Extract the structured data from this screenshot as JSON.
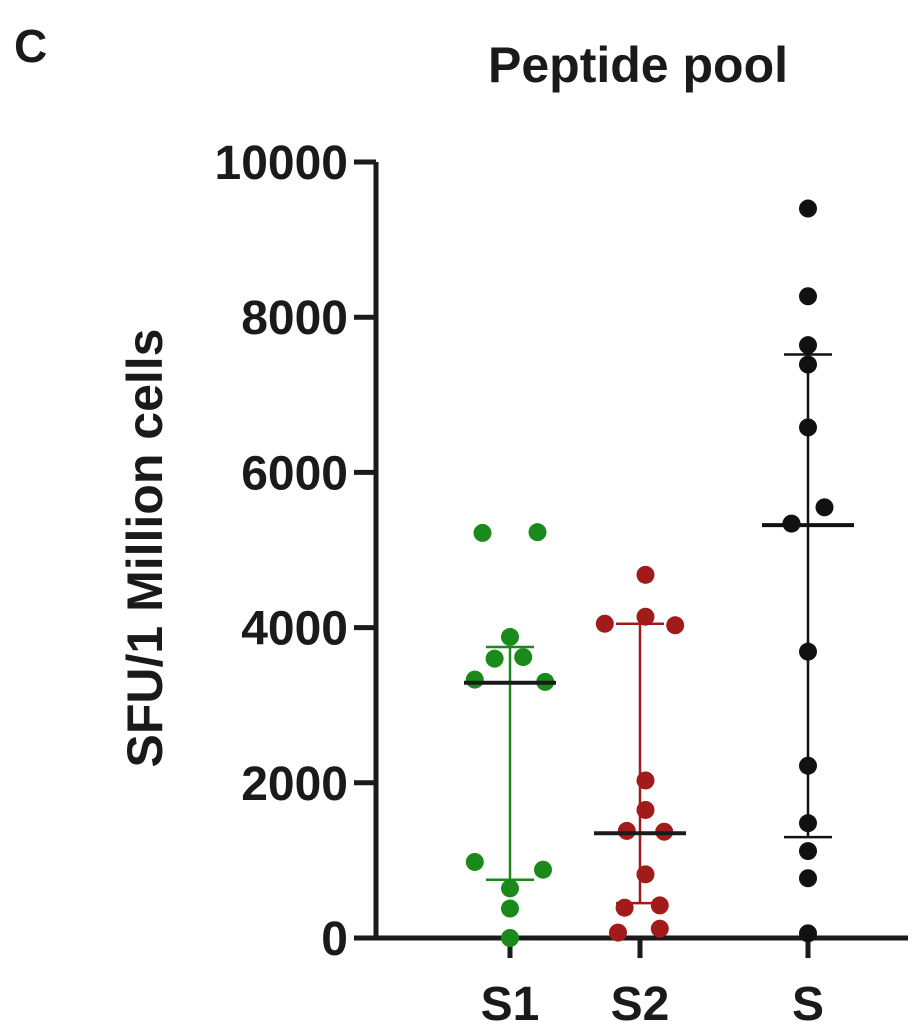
{
  "panel_label": "C",
  "chart_data": {
    "type": "scatter",
    "title": "Peptide pool",
    "xlabel": "",
    "ylabel": "SFU/1 Million cells",
    "ylim": [
      0,
      10000
    ],
    "yticks": [
      0,
      2000,
      4000,
      6000,
      8000,
      10000
    ],
    "categories": [
      "S1",
      "S2",
      "S"
    ],
    "grid": false,
    "series": [
      {
        "category": "S1",
        "color": "#1a8a1a",
        "points": [
          {
            "offset": -0.25,
            "y": 5220
          },
          {
            "offset": 0.25,
            "y": 5230
          },
          {
            "offset": 0.0,
            "y": 3880
          },
          {
            "offset": -0.14,
            "y": 3600
          },
          {
            "offset": 0.12,
            "y": 3620
          },
          {
            "offset": -0.32,
            "y": 3330
          },
          {
            "offset": 0.32,
            "y": 3300
          },
          {
            "offset": -0.32,
            "y": 980
          },
          {
            "offset": 0.3,
            "y": 880
          },
          {
            "offset": 0.0,
            "y": 640
          },
          {
            "offset": 0.0,
            "y": 380
          },
          {
            "offset": 0.0,
            "y": 0
          }
        ],
        "median": 3290,
        "q1": 750,
        "q3": 3750,
        "median_color": "#1a1a1a"
      },
      {
        "category": "S2",
        "color": "#a11b1b",
        "points": [
          {
            "offset": 0.05,
            "y": 4680
          },
          {
            "offset": 0.05,
            "y": 4140
          },
          {
            "offset": -0.32,
            "y": 4050
          },
          {
            "offset": 0.32,
            "y": 4030
          },
          {
            "offset": 0.05,
            "y": 2030
          },
          {
            "offset": 0.05,
            "y": 1650
          },
          {
            "offset": -0.12,
            "y": 1380
          },
          {
            "offset": 0.22,
            "y": 1370
          },
          {
            "offset": 0.05,
            "y": 820
          },
          {
            "offset": -0.14,
            "y": 390
          },
          {
            "offset": 0.18,
            "y": 420
          },
          {
            "offset": -0.2,
            "y": 70
          },
          {
            "offset": 0.18,
            "y": 120
          }
        ],
        "median": 1350,
        "q1": 450,
        "q3": 4050,
        "median_color": "#1a1a1a"
      },
      {
        "category": "S",
        "color": "#111111",
        "points": [
          {
            "offset": 0.0,
            "y": 9400
          },
          {
            "offset": 0.0,
            "y": 8270
          },
          {
            "offset": 0.0,
            "y": 7640
          },
          {
            "offset": 0.0,
            "y": 7390
          },
          {
            "offset": 0.0,
            "y": 6580
          },
          {
            "offset": 0.15,
            "y": 5550
          },
          {
            "offset": -0.15,
            "y": 5340
          },
          {
            "offset": 0.0,
            "y": 3690
          },
          {
            "offset": 0.0,
            "y": 2220
          },
          {
            "offset": 0.0,
            "y": 1480
          },
          {
            "offset": 0.0,
            "y": 1120
          },
          {
            "offset": 0.0,
            "y": 770
          },
          {
            "offset": 0.0,
            "y": 60
          }
        ],
        "median": 5320,
        "q1": 1300,
        "q3": 7520,
        "median_color": "#111111"
      }
    ]
  }
}
